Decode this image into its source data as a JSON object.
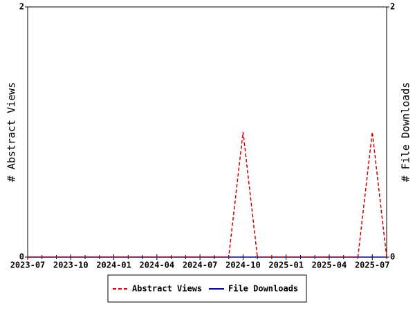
{
  "chart_data": {
    "type": "line",
    "categories": [
      "2023-07",
      null,
      null,
      "2023-10",
      null,
      null,
      "2024-01",
      null,
      null,
      "2024-04",
      null,
      null,
      "2024-07",
      null,
      null,
      "2024-10",
      null,
      null,
      "2025-01",
      null,
      null,
      "2025-04",
      null,
      null,
      "2025-07",
      null
    ],
    "series": [
      {
        "name": "Abstract Views",
        "color": "#cc0000",
        "dashed": true,
        "values": [
          0,
          0,
          0,
          0,
          0,
          0,
          0,
          0,
          0,
          0,
          0,
          0,
          0,
          0,
          0,
          1,
          0,
          0,
          0,
          0,
          0,
          0,
          0,
          0,
          1,
          0
        ]
      },
      {
        "name": "File Downloads",
        "color": "#00008b",
        "axis": "y2",
        "values": [
          0,
          0,
          0,
          0,
          0,
          0,
          0,
          0,
          0,
          0,
          0,
          0,
          0,
          0,
          0,
          0,
          0,
          0,
          0,
          0,
          0,
          0,
          0,
          0,
          0,
          0
        ]
      }
    ],
    "ylabel": "# Abstract Views",
    "y2label": "# File Downloads",
    "ylim": [
      0,
      2
    ],
    "yticks": [
      0,
      2
    ],
    "y2lim": [
      0,
      2
    ],
    "y2ticks": [
      0,
      2
    ],
    "legend": "bottom"
  }
}
